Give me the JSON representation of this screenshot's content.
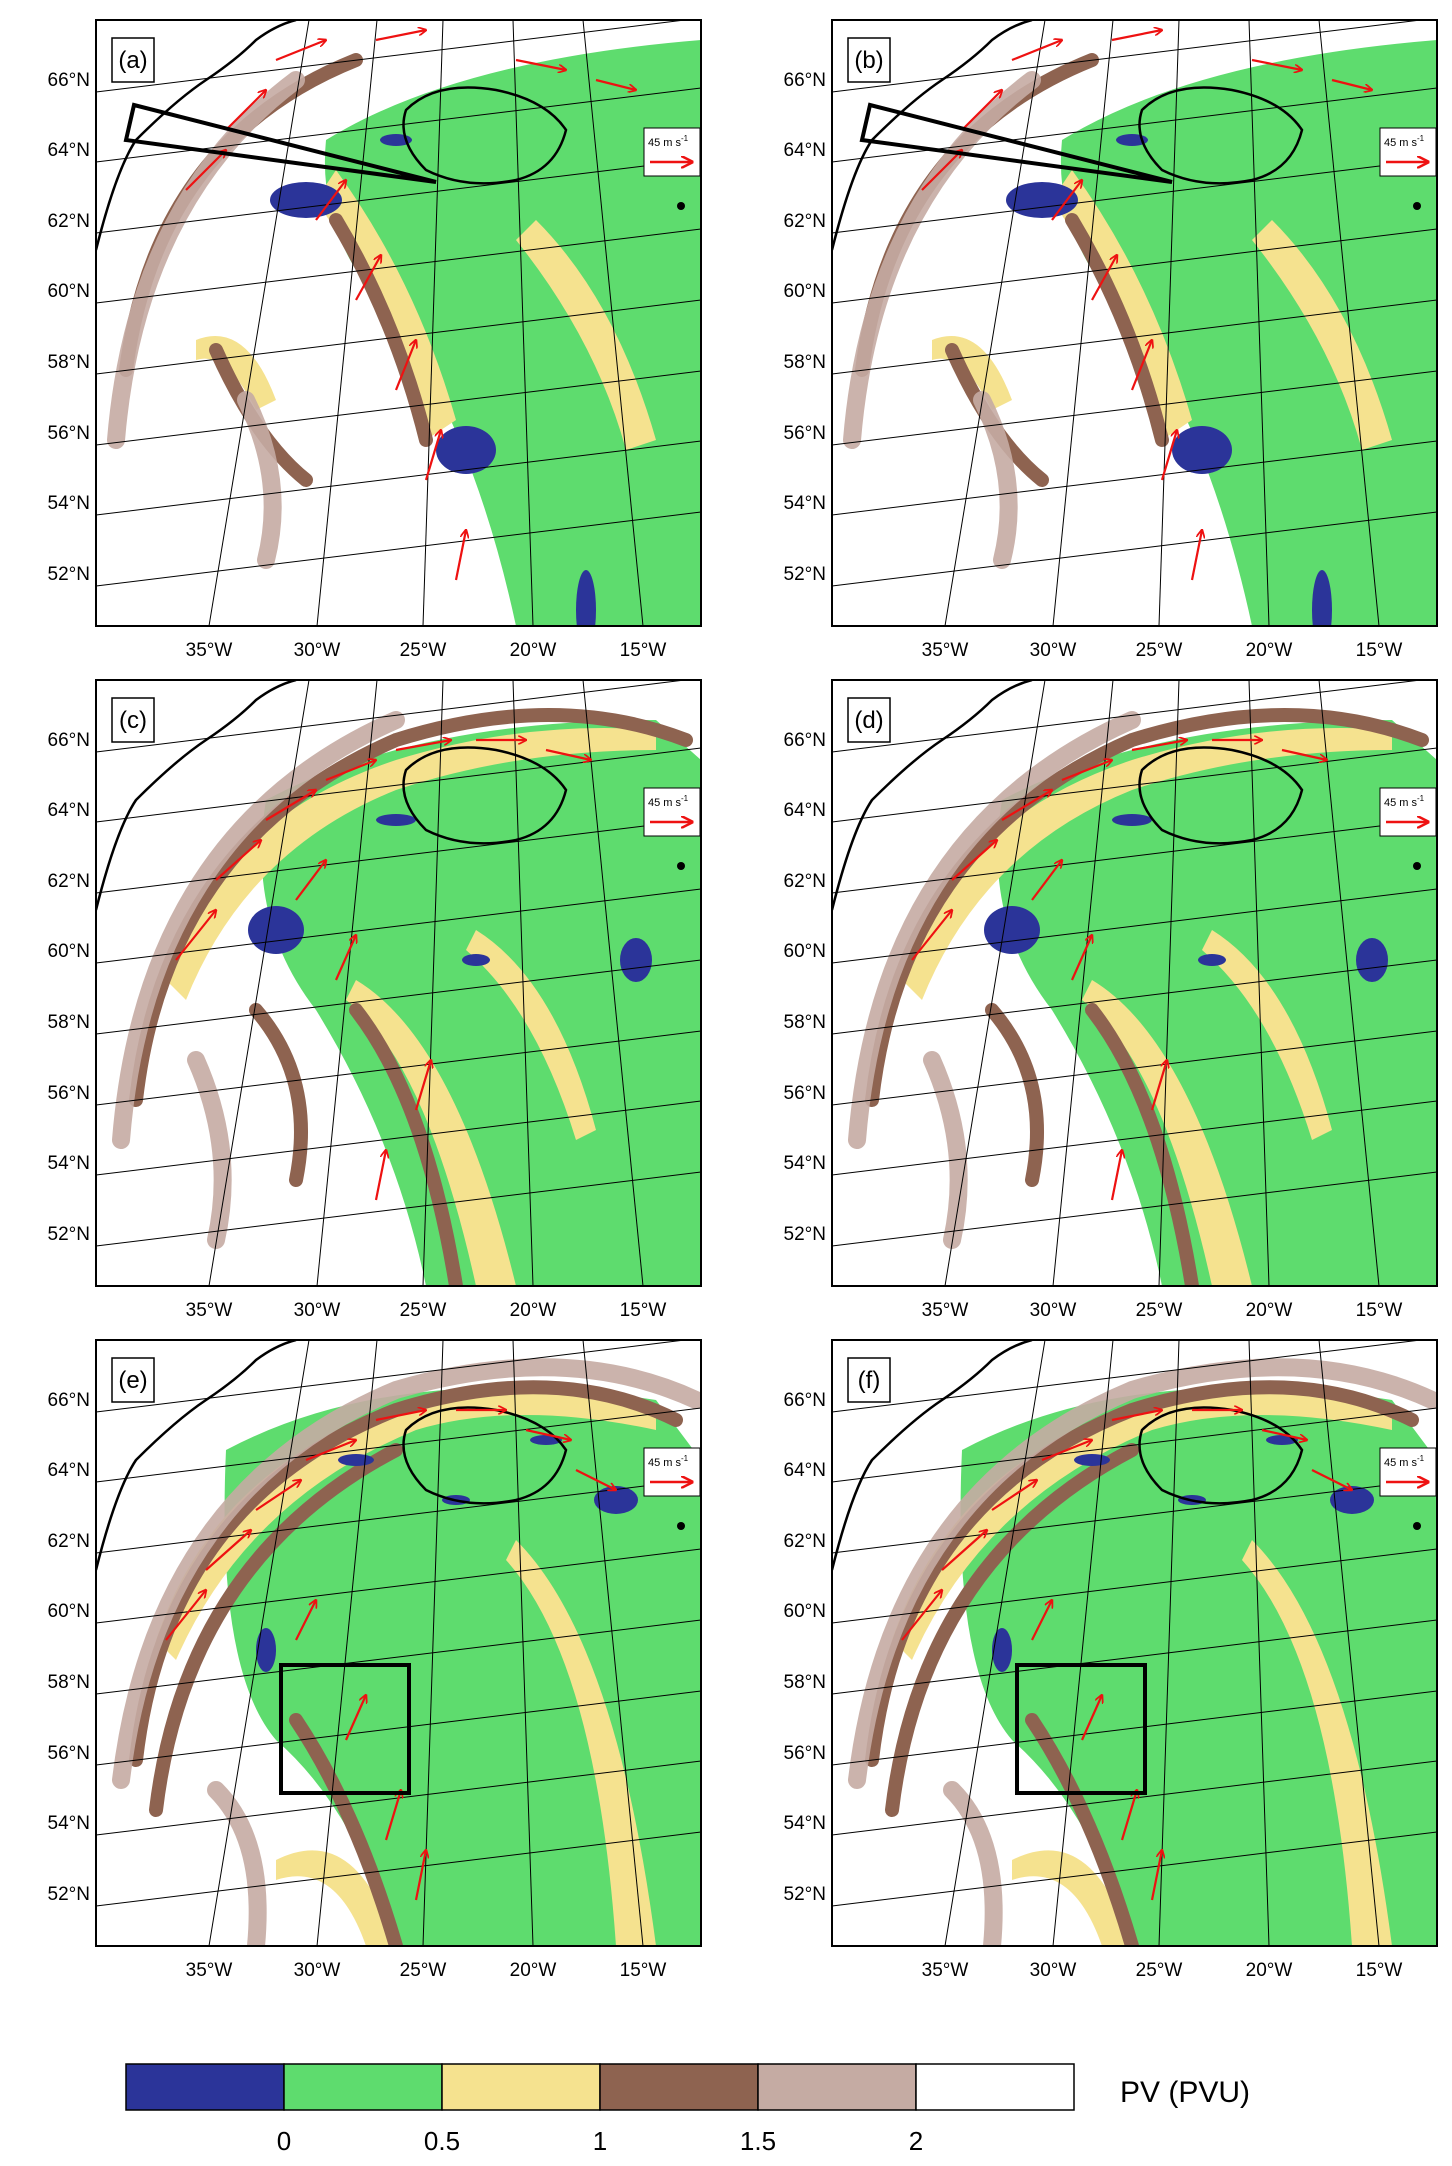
{
  "figure": {
    "lat_labels": [
      "66°N",
      "64°N",
      "62°N",
      "60°N",
      "58°N",
      "56°N",
      "54°N",
      "52°N"
    ],
    "lon_labels": [
      "35°W",
      "30°W",
      "25°W",
      "20°W",
      "15°W"
    ],
    "panels": [
      {
        "label": "(a)",
        "box": "wedge"
      },
      {
        "label": "(b)",
        "box": "wedge"
      },
      {
        "label": "(c)",
        "box": "none"
      },
      {
        "label": "(d)",
        "box": "none"
      },
      {
        "label": "(e)",
        "box": "rect"
      },
      {
        "label": "(f)",
        "box": "rect"
      }
    ],
    "ref_vector": {
      "label": "45 m s",
      "superscript": "-1"
    }
  },
  "colors": {
    "pv_lt0": "#2b3499",
    "pv_0_05": "#5edc6e",
    "pv_05_1": "#f5e28f",
    "pv_1_15": "#8e6350",
    "pv_15_2": "#c5aba3",
    "pv_gt2": "#ffffff",
    "vector": "#ee1111"
  },
  "colorbar": {
    "ticks": [
      "0",
      "0.5",
      "1",
      "1.5",
      "2"
    ],
    "title": "PV (PVU)"
  }
}
